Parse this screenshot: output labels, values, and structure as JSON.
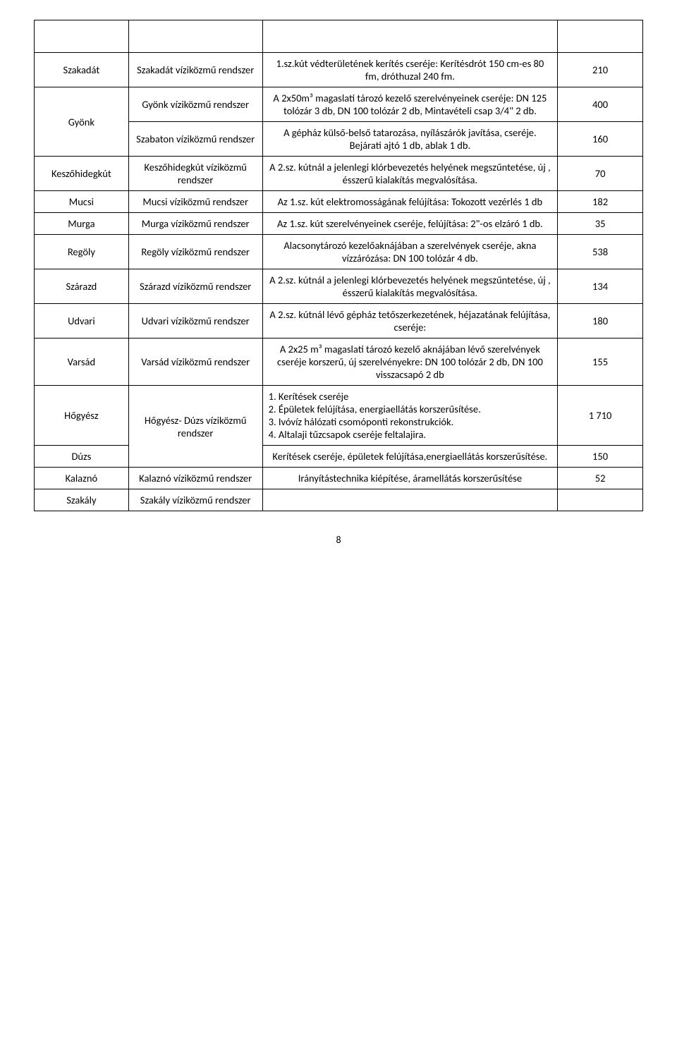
{
  "page_number": "8",
  "rows": [
    {
      "type": "blank"
    },
    {
      "col1": "Szakadát",
      "col2": "Szakadát víziközmű rendszer",
      "col3": "1.sz.kút védterületének kerítés cseréje: Kerítésdrót 150 cm-es 80 fm, dróthuzal 240 fm.",
      "col4": "210",
      "a3": "center"
    },
    {
      "col1": "Gyönk",
      "rowspan1": 2,
      "col2": "Gyönk víziközmű rendszer",
      "col3": "A 2x50m³ magaslati tározó kezelő szerelvényeinek cseréje: DN 125 tolózár 3 db, DN 100 tolózár 2 db, Mintavételi csap 3/4\" 2 db.",
      "col4": "400",
      "a3": "center"
    },
    {
      "col2": "Szabaton víziközmű rendszer",
      "col3": "A gépház külső-belső tatarozása, nyílászárók javítása, cseréje. Bejárati ajtó 1 db, ablak 1 db.",
      "col4": "160",
      "a3": "center"
    },
    {
      "col1": "Keszőhidegkút",
      "col2": "Keszőhidegkút víziközmű rendszer",
      "col3": "A 2.sz. kútnál a jelenlegi klórbevezetés helyének megszűntetése, új , ésszerű kialakítás megvalósítása.",
      "col4": "70",
      "a3": "center"
    },
    {
      "col1": "Mucsi",
      "col2": "Mucsi víziközmű rendszer",
      "col3": "Az 1.sz. kút elektromosságának felújítása: Tokozott vezérlés 1 db",
      "col4": "182",
      "a3": "center"
    },
    {
      "col1": "Murga",
      "col2": "Murga víziközmű rendszer",
      "col3": "Az 1.sz. kút szerelvényeinek cseréje, felújítása: 2\"-os elzáró 1 db.",
      "col4": "35",
      "a3": "center"
    },
    {
      "col1": "Regöly",
      "col2": "Regöly víziközmű rendszer",
      "col3": "Alacsonytározó kezelőaknájában a szerelvények cseréje, akna vízzárózása: DN 100 tolózár 4 db.",
      "col4": "538",
      "a3": "center"
    },
    {
      "col1": "Szárazd",
      "col2": "Szárazd víziközmű rendszer",
      "col3": "A 2.sz. kútnál a jelenlegi klórbevezetés helyének megszűntetése, új , ésszerű kialakítás megvalósítása.",
      "col4": "134",
      "a3": "center"
    },
    {
      "col1": "Udvari",
      "col2": "Udvari víziközmű rendszer",
      "col3": "A 2.sz. kútnál lévő gépház tetőszerkezetének, héjazatának felújítása, cseréje:",
      "col4": "180",
      "a3": "center"
    },
    {
      "col1": "Varsád",
      "col2": "Varsád víziközmű rendszer",
      "col3": "A 2x25 m³ magaslati tározó kezelő aknájában lévő szerelvények cseréje korszerű, új szerelvényekre: DN 100 tolózár 2 db, DN 100 visszacsapó 2 db",
      "col4": "155",
      "a3": "center"
    },
    {
      "col1": "Hőgyész",
      "col2": "Hőgyész- Dúzs víziközmű rendszer",
      "rowspan2": 2,
      "col3": "1. Kerítések cseréje\n2. Épületek felújítása, energiaellátás korszerűsítése.\n3. Ivóvíz hálózati csomóponti rekonstrukciók.\n4. Altalaji tűzcsapok cseréje feltalajira.",
      "col4": "1 710",
      "a3": "left"
    },
    {
      "col1": "Dúzs",
      "col3": "Kerítések cseréje, épületek felújítása,energiaellátás korszerűsítése.",
      "col4": "150",
      "a3": "center"
    },
    {
      "col1": "Kalaznó",
      "col2": "Kalaznó víziközmű rendszer",
      "col3": "Irányítástechnika kiépítése, áramellátás korszerűsítése",
      "col4": "52",
      "a3": "center"
    },
    {
      "col1": "Szakály",
      "col2": "Szakály víziközmű rendszer",
      "col3": "",
      "col4": "",
      "a3": "center"
    }
  ]
}
